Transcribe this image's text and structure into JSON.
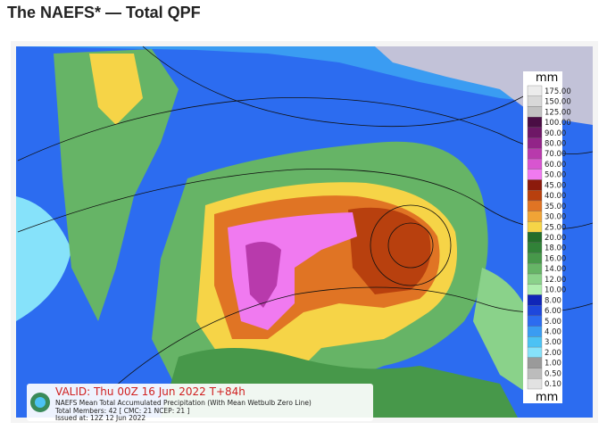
{
  "header": {
    "title": "The NAEFS* — Total QPF"
  },
  "legend": {
    "unit_top": "mm",
    "unit_bottom": "mm",
    "items": [
      {
        "label": "175.00",
        "color": "#ececec"
      },
      {
        "label": "150.00",
        "color": "#d8d8d8"
      },
      {
        "label": "125.00",
        "color": "#c2c2c2"
      },
      {
        "label": "100.00",
        "color": "#4a0d44"
      },
      {
        "label": "90.00",
        "color": "#6e1766"
      },
      {
        "label": "80.00",
        "color": "#922488"
      },
      {
        "label": "70.00",
        "color": "#b83aac"
      },
      {
        "label": "60.00",
        "color": "#d855d0"
      },
      {
        "label": "50.00",
        "color": "#f07af0"
      },
      {
        "label": "45.00",
        "color": "#8c1a0c"
      },
      {
        "label": "40.00",
        "color": "#b8400e"
      },
      {
        "label": "35.00",
        "color": "#e07424"
      },
      {
        "label": "30.00",
        "color": "#f0a436"
      },
      {
        "label": "25.00",
        "color": "#f6d447"
      },
      {
        "label": "20.00",
        "color": "#236e2a"
      },
      {
        "label": "18.00",
        "color": "#318238"
      },
      {
        "label": "16.00",
        "color": "#47984a"
      },
      {
        "label": "14.00",
        "color": "#66b466"
      },
      {
        "label": "12.00",
        "color": "#8ad28a"
      },
      {
        "label": "10.00",
        "color": "#aeeeae"
      },
      {
        "label": "8.00",
        "color": "#1026b8"
      },
      {
        "label": "6.00",
        "color": "#1e48dc"
      },
      {
        "label": "5.00",
        "color": "#2c6cf0"
      },
      {
        "label": "4.00",
        "color": "#3a9cf2"
      },
      {
        "label": "3.00",
        "color": "#4cc2f4"
      },
      {
        "label": "2.00",
        "color": "#86e2fa"
      },
      {
        "label": "1.00",
        "color": "#9a9a9a"
      },
      {
        "label": "0.50",
        "color": "#bcbcbc"
      },
      {
        "label": "0.10",
        "color": "#e2e2e2"
      }
    ]
  },
  "info": {
    "valid": "VALID: Thu 00Z 16 Jun 2022  T+84h",
    "description": "NAEFS Mean Total Accumulated Precipitation (With Mean Wetbulb Zero Line)",
    "members": "Total Members: 42  [ CMC: 21 NCEP: 21 ]",
    "issued": "Issued at: 12Z 12 Jun 2022"
  }
}
